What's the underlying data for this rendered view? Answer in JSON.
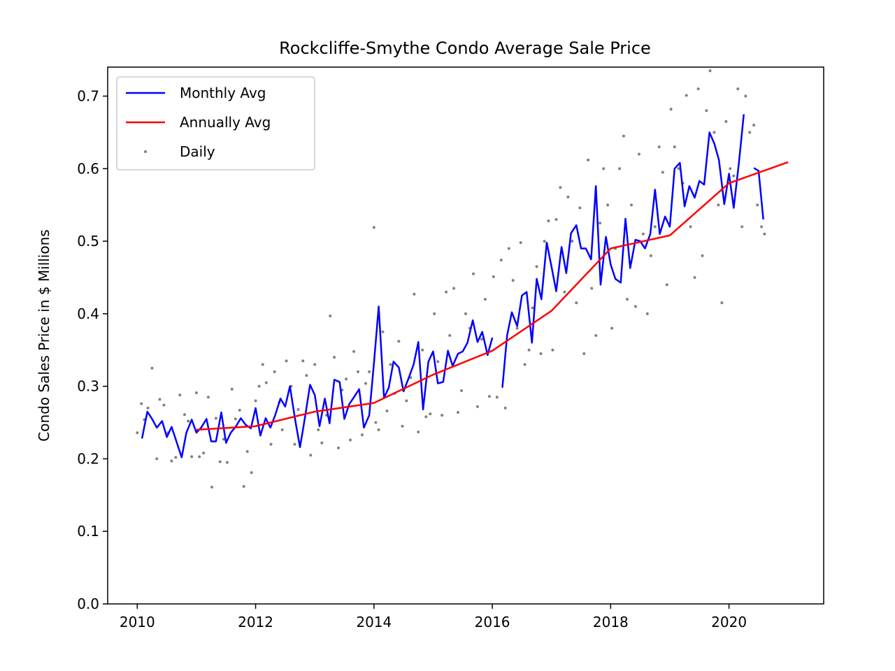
{
  "chart_data": {
    "type": "line",
    "title": "Rockcliffe-Smythe Condo Average Sale Price",
    "xlabel": "",
    "ylabel": "Condo Sales Price in $ Millions",
    "xlim": [
      2009.5,
      2021.6
    ],
    "ylim": [
      0.0,
      0.74
    ],
    "x_ticks": [
      2010,
      2012,
      2014,
      2016,
      2018,
      2020
    ],
    "y_ticks": [
      0.0,
      0.1,
      0.2,
      0.3,
      0.4,
      0.5,
      0.6,
      0.7
    ],
    "x_tick_labels": [
      "2010",
      "2012",
      "2014",
      "2016",
      "2018",
      "2020"
    ],
    "y_tick_labels": [
      "0.0",
      "0.1",
      "0.2",
      "0.3",
      "0.4",
      "0.5",
      "0.6",
      "0.7"
    ],
    "grid": false,
    "legend": {
      "position": "upper-left",
      "entries": [
        {
          "label": "Monthly Avg",
          "style": "line",
          "color": "#0000ff"
        },
        {
          "label": "Annually Avg",
          "style": "line",
          "color": "#ff0000"
        },
        {
          "label": "Daily",
          "style": "point",
          "color": "#808080"
        }
      ]
    },
    "series": [
      {
        "name": "Monthly Avg",
        "style": "line",
        "color": "#0000ff",
        "segments": [
          {
            "x": [
              2010.08,
              2010.17,
              2010.25,
              2010.33,
              2010.42,
              2010.5,
              2010.58,
              2010.67,
              2010.75,
              2010.83,
              2010.92,
              2011.0,
              2011.08,
              2011.17,
              2011.25,
              2011.33,
              2011.42,
              2011.5,
              2011.58,
              2011.67,
              2011.75,
              2011.83,
              2011.92,
              2012.0,
              2012.08,
              2012.17,
              2012.25,
              2012.33,
              2012.42,
              2012.5,
              2012.58,
              2012.67,
              2012.75,
              2012.83,
              2012.92,
              2013.0,
              2013.08,
              2013.17,
              2013.25,
              2013.33,
              2013.42,
              2013.5,
              2013.58,
              2013.67,
              2013.75,
              2013.83,
              2013.92,
              2014.0,
              2014.08,
              2014.17,
              2014.25,
              2014.33,
              2014.42,
              2014.5,
              2014.58,
              2014.67,
              2014.75,
              2014.83,
              2014.92,
              2015.0,
              2015.08,
              2015.17,
              2015.25,
              2015.33,
              2015.42,
              2015.5,
              2015.58,
              2015.67,
              2015.75,
              2015.83,
              2015.92,
              2016.0
            ],
            "y": [
              0.228,
              0.265,
              0.255,
              0.243,
              0.252,
              0.23,
              0.244,
              0.222,
              0.202,
              0.236,
              0.254,
              0.236,
              0.243,
              0.255,
              0.224,
              0.224,
              0.264,
              0.222,
              0.236,
              0.245,
              0.256,
              0.247,
              0.242,
              0.27,
              0.232,
              0.256,
              0.243,
              0.26,
              0.283,
              0.272,
              0.3,
              0.253,
              0.216,
              0.255,
              0.302,
              0.288,
              0.245,
              0.283,
              0.249,
              0.309,
              0.306,
              0.255,
              0.275,
              0.286,
              0.296,
              0.243,
              0.26,
              0.332,
              0.41,
              0.284,
              0.298,
              0.334,
              0.326,
              0.293,
              0.31,
              0.33,
              0.361,
              0.268,
              0.334,
              0.348,
              0.304,
              0.306,
              0.349,
              0.328,
              0.345,
              0.348,
              0.36,
              0.391,
              0.361,
              0.375,
              0.343,
              0.367
            ]
          },
          {
            "x": [
              2016.17,
              2016.25,
              2016.33,
              2016.42,
              2016.5,
              2016.58,
              2016.67,
              2016.75,
              2016.83,
              2016.92,
              2017.0,
              2017.08,
              2017.17,
              2017.25,
              2017.33,
              2017.42,
              2017.5,
              2017.58,
              2017.67,
              2017.75,
              2017.83,
              2017.92,
              2018.0,
              2018.08,
              2018.17,
              2018.25,
              2018.33,
              2018.42,
              2018.5,
              2018.58,
              2018.67,
              2018.75,
              2018.83,
              2018.92,
              2019.0,
              2019.08,
              2019.17,
              2019.25,
              2019.33,
              2019.42,
              2019.5,
              2019.58,
              2019.67,
              2019.75,
              2019.83,
              2019.92,
              2020.0,
              2020.08,
              2020.17,
              2020.25
            ],
            "y": [
              0.298,
              0.37,
              0.402,
              0.383,
              0.425,
              0.43,
              0.36,
              0.448,
              0.42,
              0.498,
              0.465,
              0.431,
              0.492,
              0.456,
              0.511,
              0.522,
              0.49,
              0.49,
              0.475,
              0.576,
              0.44,
              0.506,
              0.468,
              0.448,
              0.443,
              0.531,
              0.463,
              0.502,
              0.5,
              0.49,
              0.51,
              0.571,
              0.51,
              0.534,
              0.52,
              0.6,
              0.608,
              0.548,
              0.576,
              0.56,
              0.583,
              0.578,
              0.65,
              0.635,
              0.612,
              0.551,
              0.593,
              0.546,
              0.61,
              0.675
            ]
          },
          {
            "x": [
              2020.42,
              2020.5,
              2020.58
            ],
            "y": [
              0.601,
              0.597,
              0.53
            ]
          }
        ]
      },
      {
        "name": "Annually Avg",
        "style": "line",
        "color": "#ff0000",
        "x": [
          2011.0,
          2012.0,
          2013.0,
          2014.0,
          2015.0,
          2016.0,
          2017.0,
          2018.0,
          2019.0,
          2020.0,
          2021.0
        ],
        "y": [
          0.24,
          0.245,
          0.265,
          0.277,
          0.316,
          0.349,
          0.404,
          0.49,
          0.508,
          0.58,
          0.609
        ]
      },
      {
        "name": "Daily",
        "style": "scatter",
        "color": "#808080",
        "x": [
          2010.0,
          2010.07,
          2010.12,
          2010.18,
          2010.25,
          2010.33,
          2010.38,
          2010.45,
          2010.52,
          2010.58,
          2010.65,
          2010.72,
          2010.8,
          2010.86,
          2010.92,
          2011.0,
          2011.05,
          2011.12,
          2011.2,
          2011.26,
          2011.33,
          2011.4,
          2011.46,
          2011.52,
          2011.6,
          2011.66,
          2011.73,
          2011.8,
          2011.86,
          2011.93,
          2012.0,
          2012.06,
          2012.12,
          2012.18,
          2012.26,
          2012.32,
          2012.4,
          2012.45,
          2012.52,
          2012.6,
          2012.66,
          2012.72,
          2012.8,
          2012.86,
          2012.93,
          2013.0,
          2013.06,
          2013.12,
          2013.2,
          2013.26,
          2013.33,
          2013.4,
          2013.46,
          2013.53,
          2013.6,
          2013.66,
          2013.73,
          2013.8,
          2013.86,
          2013.92,
          2014.0,
          2014.03,
          2014.08,
          2014.15,
          2014.22,
          2014.28,
          2014.35,
          2014.42,
          2014.48,
          2014.55,
          2014.62,
          2014.68,
          2014.75,
          2014.82,
          2014.88,
          2014.95,
          2015.02,
          2015.08,
          2015.15,
          2015.22,
          2015.28,
          2015.35,
          2015.42,
          2015.48,
          2015.55,
          2015.62,
          2015.68,
          2015.75,
          2015.82,
          2015.88,
          2015.95,
          2016.02,
          2016.08,
          2016.15,
          2016.22,
          2016.28,
          2016.35,
          2016.42,
          2016.48,
          2016.55,
          2016.62,
          2016.68,
          2016.75,
          2016.82,
          2016.88,
          2016.95,
          2017.02,
          2017.08,
          2017.15,
          2017.22,
          2017.28,
          2017.35,
          2017.42,
          2017.48,
          2017.55,
          2017.62,
          2017.68,
          2017.75,
          2017.82,
          2017.88,
          2017.95,
          2018.02,
          2018.08,
          2018.15,
          2018.22,
          2018.28,
          2018.35,
          2018.42,
          2018.48,
          2018.55,
          2018.62,
          2018.68,
          2018.75,
          2018.82,
          2018.88,
          2018.95,
          2019.02,
          2019.08,
          2019.15,
          2019.22,
          2019.28,
          2019.35,
          2019.42,
          2019.48,
          2019.55,
          2019.62,
          2019.68,
          2019.75,
          2019.82,
          2019.88,
          2019.95,
          2020.02,
          2020.08,
          2020.15,
          2020.22,
          2020.28,
          2020.35,
          2020.42,
          2020.48,
          2020.55,
          2020.6
        ],
        "y": [
          0.236,
          0.276,
          0.254,
          0.27,
          0.325,
          0.2,
          0.282,
          0.274,
          0.236,
          0.197,
          0.202,
          0.288,
          0.261,
          0.252,
          0.203,
          0.291,
          0.203,
          0.208,
          0.285,
          0.161,
          0.256,
          0.196,
          0.227,
          0.195,
          0.296,
          0.255,
          0.267,
          0.162,
          0.21,
          0.181,
          0.28,
          0.3,
          0.33,
          0.305,
          0.22,
          0.32,
          0.278,
          0.24,
          0.335,
          0.3,
          0.22,
          0.268,
          0.335,
          0.315,
          0.205,
          0.33,
          0.24,
          0.222,
          0.26,
          0.397,
          0.34,
          0.215,
          0.295,
          0.31,
          0.226,
          0.348,
          0.32,
          0.233,
          0.304,
          0.32,
          0.519,
          0.25,
          0.24,
          0.375,
          0.266,
          0.33,
          0.29,
          0.362,
          0.245,
          0.28,
          0.312,
          0.427,
          0.237,
          0.35,
          0.258,
          0.262,
          0.4,
          0.334,
          0.26,
          0.43,
          0.37,
          0.435,
          0.264,
          0.294,
          0.4,
          0.38,
          0.455,
          0.272,
          0.365,
          0.42,
          0.286,
          0.451,
          0.285,
          0.474,
          0.27,
          0.49,
          0.446,
          0.38,
          0.498,
          0.33,
          0.35,
          0.408,
          0.465,
          0.345,
          0.5,
          0.528,
          0.35,
          0.53,
          0.574,
          0.43,
          0.561,
          0.5,
          0.415,
          0.546,
          0.345,
          0.612,
          0.435,
          0.37,
          0.525,
          0.6,
          0.55,
          0.38,
          0.49,
          0.6,
          0.645,
          0.42,
          0.55,
          0.41,
          0.62,
          0.51,
          0.4,
          0.48,
          0.52,
          0.63,
          0.595,
          0.44,
          0.682,
          0.63,
          0.6,
          0.58,
          0.701,
          0.52,
          0.45,
          0.71,
          0.48,
          0.68,
          0.735,
          0.65,
          0.55,
          0.415,
          0.665,
          0.6,
          0.59,
          0.71,
          0.52,
          0.7,
          0.65,
          0.66,
          0.55,
          0.52,
          0.51
        ]
      }
    ]
  }
}
